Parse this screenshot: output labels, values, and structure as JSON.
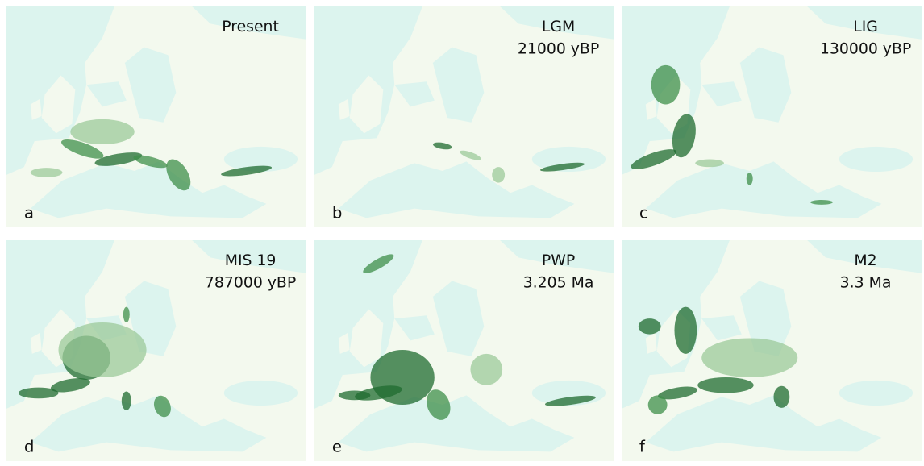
{
  "panels": [
    {
      "letter": "a",
      "title": [
        "Present"
      ]
    },
    {
      "letter": "b",
      "title": [
        "LGM",
        "21000 yBP"
      ]
    },
    {
      "letter": "c",
      "title": [
        "LIG",
        "130000 yBP"
      ]
    },
    {
      "letter": "d",
      "title": [
        "MIS 19",
        "787000 yBP"
      ]
    },
    {
      "letter": "e",
      "title": [
        "PWP",
        "3.205 Ma"
      ]
    },
    {
      "letter": "f",
      "title": [
        "M2",
        "3.3 Ma"
      ]
    }
  ]
}
